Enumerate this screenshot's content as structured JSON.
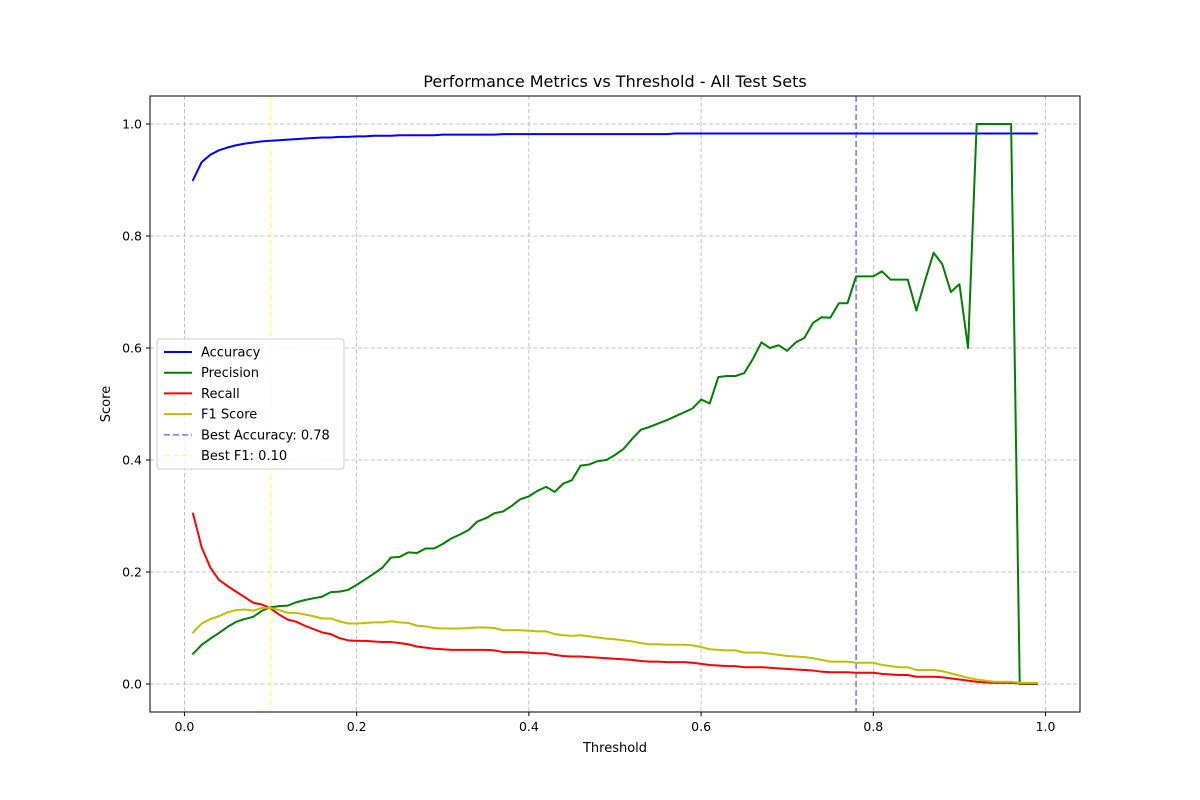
{
  "chart_data": {
    "type": "line",
    "title": "Performance Metrics vs Threshold - All Test Sets",
    "xlabel": "Threshold",
    "ylabel": "Score",
    "xlim": [
      -0.04,
      1.04
    ],
    "ylim": [
      -0.05,
      1.05
    ],
    "xticks": [
      "0.0",
      "0.2",
      "0.4",
      "0.6",
      "0.8",
      "1.0"
    ],
    "yticks": [
      "0.0",
      "0.2",
      "0.4",
      "0.6",
      "0.8",
      "1.0"
    ],
    "grid": true,
    "legend_position": "center-left",
    "x": [
      0.01,
      0.02,
      0.03,
      0.04,
      0.05,
      0.06,
      0.07,
      0.08,
      0.09,
      0.1,
      0.11,
      0.12,
      0.13,
      0.14,
      0.15,
      0.16,
      0.17,
      0.18,
      0.19,
      0.2,
      0.21,
      0.22,
      0.23,
      0.24,
      0.25,
      0.26,
      0.27,
      0.28,
      0.29,
      0.3,
      0.31,
      0.32,
      0.33,
      0.34,
      0.35,
      0.36,
      0.37,
      0.38,
      0.39,
      0.4,
      0.41,
      0.42,
      0.43,
      0.44,
      0.45,
      0.46,
      0.47,
      0.48,
      0.49,
      0.5,
      0.51,
      0.52,
      0.53,
      0.54,
      0.55,
      0.56,
      0.57,
      0.58,
      0.59,
      0.6,
      0.61,
      0.62,
      0.63,
      0.64,
      0.65,
      0.66,
      0.67,
      0.68,
      0.69,
      0.7,
      0.71,
      0.72,
      0.73,
      0.74,
      0.75,
      0.76,
      0.77,
      0.78,
      0.79,
      0.8,
      0.81,
      0.82,
      0.83,
      0.84,
      0.85,
      0.86,
      0.87,
      0.88,
      0.89,
      0.9,
      0.91,
      0.92,
      0.93,
      0.94,
      0.95,
      0.96,
      0.97,
      0.98,
      0.99
    ],
    "series": [
      {
        "name": "Accuracy",
        "color": "#0000ff",
        "values": [
          0.9,
          0.932,
          0.945,
          0.953,
          0.958,
          0.962,
          0.965,
          0.967,
          0.969,
          0.97,
          0.971,
          0.972,
          0.973,
          0.974,
          0.975,
          0.976,
          0.976,
          0.977,
          0.977,
          0.978,
          0.978,
          0.979,
          0.979,
          0.979,
          0.98,
          0.98,
          0.98,
          0.98,
          0.98,
          0.981,
          0.981,
          0.981,
          0.981,
          0.981,
          0.981,
          0.981,
          0.982,
          0.982,
          0.982,
          0.982,
          0.982,
          0.982,
          0.982,
          0.982,
          0.982,
          0.982,
          0.982,
          0.982,
          0.982,
          0.982,
          0.982,
          0.982,
          0.982,
          0.982,
          0.982,
          0.982,
          0.983,
          0.983,
          0.983,
          0.983,
          0.983,
          0.983,
          0.983,
          0.983,
          0.983,
          0.983,
          0.983,
          0.983,
          0.983,
          0.983,
          0.983,
          0.983,
          0.983,
          0.983,
          0.983,
          0.983,
          0.983,
          0.983,
          0.983,
          0.983,
          0.983,
          0.983,
          0.983,
          0.983,
          0.983,
          0.983,
          0.983,
          0.983,
          0.983,
          0.983,
          0.983,
          0.983,
          0.983,
          0.983,
          0.983,
          0.983,
          0.983,
          0.983,
          0.983
        ]
      },
      {
        "name": "Precision",
        "color": "#008000",
        "values": [
          0.054,
          0.07,
          0.081,
          0.091,
          0.102,
          0.111,
          0.116,
          0.12,
          0.131,
          0.137,
          0.139,
          0.14,
          0.146,
          0.15,
          0.153,
          0.156,
          0.164,
          0.165,
          0.168,
          0.177,
          0.187,
          0.197,
          0.208,
          0.226,
          0.227,
          0.235,
          0.234,
          0.242,
          0.242,
          0.25,
          0.26,
          0.267,
          0.275,
          0.29,
          0.296,
          0.305,
          0.308,
          0.318,
          0.33,
          0.335,
          0.345,
          0.352,
          0.343,
          0.358,
          0.364,
          0.39,
          0.392,
          0.398,
          0.4,
          0.409,
          0.42,
          0.438,
          0.454,
          0.459,
          0.465,
          0.471,
          0.478,
          0.485,
          0.492,
          0.508,
          0.501,
          0.548,
          0.55,
          0.55,
          0.555,
          0.58,
          0.61,
          0.6,
          0.605,
          0.595,
          0.61,
          0.618,
          0.645,
          0.655,
          0.654,
          0.68,
          0.68,
          0.728,
          0.728,
          0.728,
          0.737,
          0.722,
          0.722,
          0.722,
          0.667,
          0.72,
          0.77,
          0.75,
          0.7,
          0.714,
          0.6,
          1.0,
          1.0,
          1.0,
          1.0,
          1.0,
          0.0,
          0.0,
          0.0
        ]
      },
      {
        "name": "Recall",
        "color": "#ff0000",
        "values": [
          0.304,
          0.244,
          0.208,
          0.186,
          0.175,
          0.165,
          0.155,
          0.145,
          0.142,
          0.135,
          0.124,
          0.115,
          0.111,
          0.104,
          0.098,
          0.092,
          0.089,
          0.082,
          0.078,
          0.077,
          0.077,
          0.076,
          0.075,
          0.075,
          0.073,
          0.071,
          0.067,
          0.065,
          0.063,
          0.062,
          0.061,
          0.061,
          0.061,
          0.061,
          0.061,
          0.06,
          0.057,
          0.057,
          0.057,
          0.056,
          0.055,
          0.055,
          0.052,
          0.05,
          0.049,
          0.049,
          0.048,
          0.047,
          0.046,
          0.045,
          0.044,
          0.043,
          0.041,
          0.04,
          0.04,
          0.039,
          0.039,
          0.039,
          0.038,
          0.036,
          0.034,
          0.033,
          0.032,
          0.032,
          0.03,
          0.03,
          0.03,
          0.029,
          0.028,
          0.027,
          0.026,
          0.025,
          0.024,
          0.022,
          0.021,
          0.021,
          0.021,
          0.02,
          0.02,
          0.02,
          0.018,
          0.017,
          0.016,
          0.016,
          0.013,
          0.013,
          0.013,
          0.012,
          0.01,
          0.008,
          0.006,
          0.004,
          0.003,
          0.002,
          0.002,
          0.002,
          0.001,
          0.001,
          0.001
        ]
      },
      {
        "name": "F1 Score",
        "color": "#bfbf00",
        "values": [
          0.092,
          0.108,
          0.116,
          0.121,
          0.128,
          0.132,
          0.133,
          0.131,
          0.136,
          0.136,
          0.132,
          0.127,
          0.127,
          0.124,
          0.121,
          0.117,
          0.117,
          0.112,
          0.108,
          0.108,
          0.109,
          0.11,
          0.11,
          0.112,
          0.11,
          0.109,
          0.104,
          0.103,
          0.1,
          0.099,
          0.099,
          0.099,
          0.1,
          0.101,
          0.101,
          0.1,
          0.096,
          0.096,
          0.096,
          0.095,
          0.094,
          0.094,
          0.089,
          0.087,
          0.086,
          0.087,
          0.085,
          0.083,
          0.081,
          0.08,
          0.078,
          0.076,
          0.073,
          0.071,
          0.071,
          0.07,
          0.07,
          0.07,
          0.069,
          0.066,
          0.062,
          0.061,
          0.06,
          0.06,
          0.056,
          0.056,
          0.056,
          0.054,
          0.052,
          0.05,
          0.049,
          0.048,
          0.046,
          0.043,
          0.04,
          0.04,
          0.04,
          0.038,
          0.038,
          0.038,
          0.034,
          0.032,
          0.03,
          0.03,
          0.025,
          0.025,
          0.025,
          0.023,
          0.019,
          0.015,
          0.011,
          0.008,
          0.006,
          0.004,
          0.004,
          0.004,
          0.002,
          0.002,
          0.002
        ]
      }
    ],
    "reference_lines": [
      {
        "name": "Best Accuracy: 0.78",
        "x": 0.78,
        "color": "#0000ff",
        "opacity": 0.5
      },
      {
        "name": "Best F1: 0.10",
        "x": 0.1,
        "color": "#ffff00",
        "opacity": 0.5
      }
    ]
  }
}
